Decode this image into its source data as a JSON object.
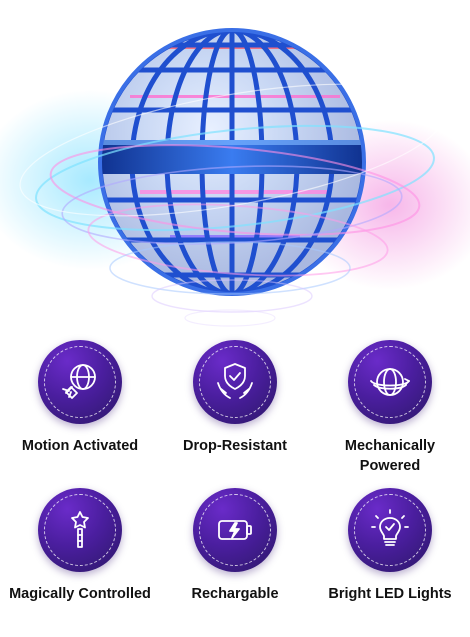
{
  "product": {
    "image_icon": "flying-orb-ball",
    "accent_colors": [
      "#1e5bd6",
      "#33c8f0",
      "#e05ad6"
    ]
  },
  "features": [
    {
      "label": "Motion Activated",
      "icon": "hand-orb-icon"
    },
    {
      "label": "Drop-Resistant",
      "icon": "shield-hands-icon"
    },
    {
      "label": "Mechanically Powered",
      "icon": "spinning-orb-icon"
    },
    {
      "label": "Magically Controlled",
      "icon": "magic-wand-icon"
    },
    {
      "label": "Rechargable",
      "icon": "battery-charging-icon"
    },
    {
      "label": "Bright LED Lights",
      "icon": "light-bulb-icon"
    }
  ],
  "theme": {
    "badge_color": "#4a1e9e",
    "label_color": "#111111"
  }
}
